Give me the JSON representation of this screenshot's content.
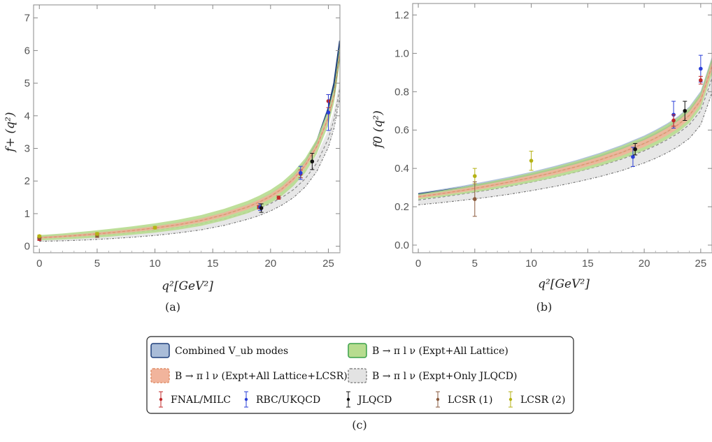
{
  "chart_data": [
    {
      "type": "line",
      "panel_label": "(a)",
      "ylabel": "f+ (q²)",
      "xlabel": "q²[GeV²]",
      "xlim": [
        -0.5,
        26
      ],
      "ylim": [
        -0.2,
        7.4
      ],
      "x_ticks": [
        "0",
        "5",
        "10",
        "15",
        "20",
        "25"
      ],
      "x_tick_values": [
        0,
        5,
        10,
        15,
        20,
        25
      ],
      "y_ticks": [
        "0",
        "1",
        "2",
        "3",
        "4",
        "5",
        "6",
        "7"
      ],
      "y_tick_values": [
        0,
        1,
        2,
        3,
        4,
        5,
        6,
        7
      ],
      "series": [
        {
          "key": "combined",
          "x": [
            0,
            2,
            4,
            6,
            8,
            10,
            12,
            14,
            16,
            18,
            19,
            20,
            21,
            22,
            23,
            24,
            25,
            25.5,
            26
          ],
          "values": [
            0.27,
            0.31,
            0.36,
            0.42,
            0.49,
            0.57,
            0.67,
            0.8,
            0.98,
            1.22,
            1.37,
            1.56,
            1.8,
            2.12,
            2.56,
            3.2,
            4.22,
            5.0,
            6.3
          ],
          "band": 0.03
        },
        {
          "key": "all_lattice",
          "x": [
            0,
            2,
            4,
            6,
            8,
            10,
            12,
            14,
            16,
            18,
            19,
            20,
            21,
            22,
            23,
            24,
            25,
            25.5,
            26
          ],
          "values": [
            0.26,
            0.3,
            0.35,
            0.41,
            0.48,
            0.56,
            0.66,
            0.79,
            0.97,
            1.2,
            1.35,
            1.53,
            1.76,
            2.07,
            2.48,
            3.06,
            3.95,
            4.65,
            5.95
          ],
          "band": 0.08
        },
        {
          "key": "lcsr",
          "x": [
            0,
            2,
            4,
            6,
            8,
            10,
            12,
            14,
            16,
            18,
            19,
            20,
            21,
            22,
            23,
            24,
            25,
            25.5,
            26
          ],
          "values": [
            0.26,
            0.3,
            0.35,
            0.41,
            0.48,
            0.56,
            0.66,
            0.79,
            0.97,
            1.2,
            1.35,
            1.53,
            1.76,
            2.07,
            2.48,
            3.06,
            3.95,
            4.65,
            5.95
          ],
          "band": 0.03
        },
        {
          "key": "jlqcd",
          "x": [
            0,
            2,
            4,
            6,
            8,
            10,
            12,
            14,
            16,
            18,
            19,
            20,
            21,
            22,
            23,
            24,
            25,
            25.5,
            26
          ],
          "values": [
            0.24,
            0.27,
            0.31,
            0.36,
            0.42,
            0.49,
            0.58,
            0.69,
            0.84,
            1.04,
            1.16,
            1.31,
            1.5,
            1.74,
            2.07,
            2.55,
            3.3,
            3.9,
            4.85
          ],
          "band": 0.09
        }
      ],
      "points": [
        {
          "key": "fnal",
          "x": 0,
          "y": 0.22,
          "err": 0.04
        },
        {
          "key": "fnal",
          "x": 19.0,
          "y": 1.2,
          "err": 0.05
        },
        {
          "key": "fnal",
          "x": 20.7,
          "y": 1.49,
          "err": 0.05
        },
        {
          "key": "fnal",
          "x": 22.6,
          "y": 2.22,
          "err": 0.12
        },
        {
          "key": "fnal",
          "x": 25.0,
          "y": 4.45,
          "err": 0.2
        },
        {
          "key": "rbc",
          "x": 19.1,
          "y": 1.2,
          "err": 0.1
        },
        {
          "key": "rbc",
          "x": 22.6,
          "y": 2.25,
          "err": 0.2
        },
        {
          "key": "rbc",
          "x": 25.0,
          "y": 4.1,
          "err": 0.55
        },
        {
          "key": "jlqcd",
          "x": 19.2,
          "y": 1.17,
          "err": 0.13
        },
        {
          "key": "jlqcd",
          "x": 23.6,
          "y": 2.6,
          "err": 0.25
        },
        {
          "key": "lcsr1",
          "x": 0,
          "y": 0.26,
          "err": 0.03
        },
        {
          "key": "lcsr1",
          "x": 5,
          "y": 0.32,
          "err": 0.05
        },
        {
          "key": "lcsr2",
          "x": 0,
          "y": 0.31,
          "err": 0.03
        },
        {
          "key": "lcsr2",
          "x": 5,
          "y": 0.38,
          "err": 0.04
        },
        {
          "key": "lcsr2",
          "x": 10,
          "y": 0.57,
          "err": 0.04
        }
      ]
    },
    {
      "type": "line",
      "panel_label": "(b)",
      "ylabel": "f0 (q²)",
      "xlabel": "q²[GeV²]",
      "xlim": [
        -0.5,
        26
      ],
      "ylim": [
        -0.04,
        1.26
      ],
      "x_ticks": [
        "0",
        "5",
        "10",
        "15",
        "20",
        "25"
      ],
      "x_tick_values": [
        0,
        5,
        10,
        15,
        20,
        25
      ],
      "y_ticks": [
        "0.0",
        "0.2",
        "0.4",
        "0.6",
        "0.8",
        "1.0",
        "1.2"
      ],
      "y_tick_values": [
        0,
        0.2,
        0.4,
        0.6,
        0.8,
        1.0,
        1.2
      ],
      "series": [
        {
          "key": "combined",
          "x": [
            0,
            2,
            4,
            6,
            8,
            10,
            12,
            14,
            16,
            18,
            20,
            21,
            22,
            23,
            24,
            25,
            26
          ],
          "values": [
            0.265,
            0.282,
            0.3,
            0.321,
            0.343,
            0.368,
            0.396,
            0.427,
            0.462,
            0.503,
            0.551,
            0.58,
            0.612,
            0.65,
            0.7,
            0.78,
            0.96
          ],
          "band": 0.008
        },
        {
          "key": "all_lattice",
          "x": [
            0,
            2,
            4,
            6,
            8,
            10,
            12,
            14,
            16,
            18,
            20,
            21,
            22,
            23,
            24,
            25,
            26
          ],
          "values": [
            0.252,
            0.268,
            0.286,
            0.306,
            0.328,
            0.352,
            0.379,
            0.409,
            0.443,
            0.483,
            0.53,
            0.558,
            0.59,
            0.628,
            0.677,
            0.755,
            0.935
          ],
          "band": 0.014
        },
        {
          "key": "lcsr",
          "x": [
            0,
            2,
            4,
            6,
            8,
            10,
            12,
            14,
            16,
            18,
            20,
            21,
            22,
            23,
            24,
            25,
            26
          ],
          "values": [
            0.252,
            0.268,
            0.286,
            0.306,
            0.328,
            0.352,
            0.379,
            0.409,
            0.443,
            0.483,
            0.53,
            0.558,
            0.59,
            0.628,
            0.677,
            0.755,
            0.935
          ],
          "band": 0.007
        },
        {
          "key": "jlqcd",
          "x": [
            0,
            2,
            4,
            6,
            8,
            10,
            12,
            14,
            16,
            18,
            20,
            21,
            22,
            23,
            24,
            25,
            26
          ],
          "values": [
            0.235,
            0.25,
            0.267,
            0.285,
            0.305,
            0.328,
            0.353,
            0.381,
            0.412,
            0.448,
            0.492,
            0.518,
            0.548,
            0.583,
            0.628,
            0.7,
            0.87
          ],
          "band": 0.025
        }
      ],
      "points": [
        {
          "key": "lcsr2",
          "x": 5,
          "y": 0.36,
          "err": 0.04
        },
        {
          "key": "lcsr2",
          "x": 10,
          "y": 0.44,
          "err": 0.05
        },
        {
          "key": "lcsr1",
          "x": 5,
          "y": 0.24,
          "err": 0.09
        },
        {
          "key": "rbc",
          "x": 19.0,
          "y": 0.46,
          "err": 0.05
        },
        {
          "key": "jlqcd",
          "x": 19.2,
          "y": 0.5,
          "err": 0.03
        },
        {
          "key": "rbc",
          "x": 22.6,
          "y": 0.68,
          "err": 0.07
        },
        {
          "key": "fnal",
          "x": 22.6,
          "y": 0.65,
          "err": 0.03
        },
        {
          "key": "jlqcd",
          "x": 23.6,
          "y": 0.7,
          "err": 0.05
        },
        {
          "key": "rbc",
          "x": 25.0,
          "y": 0.92,
          "err": 0.07
        },
        {
          "key": "fnal",
          "x": 25.0,
          "y": 0.86,
          "err": 0.02
        }
      ]
    }
  ],
  "legend": {
    "panel_label": "(c)",
    "rows": [
      [
        {
          "key": "combined",
          "style": "band",
          "label": "Combined V_ub modes"
        },
        {
          "key": "all_lattice",
          "style": "band",
          "label": "B → π l ν (Expt+All Lattice)"
        }
      ],
      [
        {
          "key": "lcsr",
          "style": "band-dashed",
          "label": "B → π l ν (Expt+All Lattice+LCSR)"
        },
        {
          "key": "jlqcd",
          "style": "band-dashed",
          "label": "B → π l ν (Expt+Only JLQCD)"
        }
      ],
      [
        {
          "key": "fnal",
          "style": "point",
          "label": "FNAL/MILC"
        },
        {
          "key": "rbc",
          "style": "point",
          "label": "RBC/UKQCD"
        },
        {
          "key": "jlqcd_pt",
          "style": "point",
          "label": "JLQCD"
        },
        {
          "key": "lcsr1",
          "style": "point",
          "label": "LCSR (1)"
        },
        {
          "key": "lcsr2",
          "style": "point",
          "label": "LCSR (2)"
        }
      ]
    ]
  },
  "colors": {
    "combined_fill": "#a9bcd8",
    "combined_line": "#1f3f7a",
    "all_lattice_fill": "#b7dc8f",
    "all_lattice_line": "#3aa04a",
    "lcsr_fill": "#f1b49c",
    "lcsr_line": "#e0906c",
    "jlqcd_fill": "#e3e3e3",
    "jlqcd_line": "#888888",
    "fnal": "#c0282a",
    "rbc": "#2a3fd8",
    "jlqcd_pt": "#111111",
    "lcsr1": "#8a5a3c",
    "lcsr2": "#b5b214"
  }
}
